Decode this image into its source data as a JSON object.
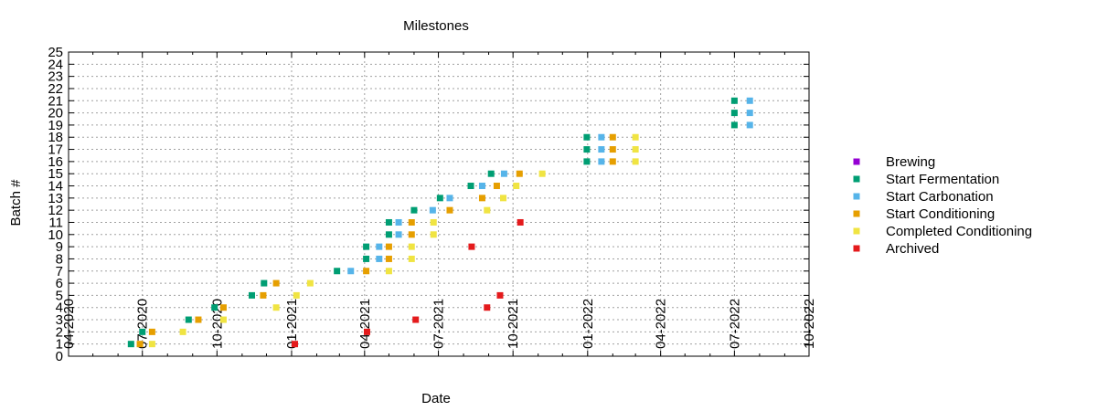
{
  "chart_data": {
    "type": "scatter",
    "title": "Milestones",
    "xlabel": "Date",
    "ylabel": "Batch #",
    "x_type": "date",
    "xlim": [
      "2020-04-01",
      "2022-10-01"
    ],
    "ylim": [
      0,
      25
    ],
    "x_ticks": [
      "04-2020",
      "07-2020",
      "10-2020",
      "01-2021",
      "04-2021",
      "07-2021",
      "10-2021",
      "01-2022",
      "04-2022",
      "07-2022",
      "10-2022"
    ],
    "y_ticks": [
      "0",
      "1",
      "2",
      "3",
      "4",
      "5",
      "6",
      "7",
      "8",
      "9",
      "10",
      "11",
      "12",
      "13",
      "14",
      "15",
      "16",
      "17",
      "18",
      "19",
      "20",
      "21",
      "22",
      "23",
      "24",
      "25"
    ],
    "grid": true,
    "legend_position": "right",
    "series": [
      {
        "name": "Brewing",
        "color": "#9400d3",
        "points": []
      },
      {
        "name": "Start Fermentation",
        "color": "#009e73",
        "points": [
          {
            "x": "2020-06-17",
            "y": 1
          },
          {
            "x": "2020-07-01",
            "y": 2
          },
          {
            "x": "2020-08-27",
            "y": 3
          },
          {
            "x": "2020-09-28",
            "y": 4
          },
          {
            "x": "2020-11-13",
            "y": 5
          },
          {
            "x": "2020-11-28",
            "y": 6
          },
          {
            "x": "2021-02-26",
            "y": 7
          },
          {
            "x": "2021-04-03",
            "y": 8
          },
          {
            "x": "2021-04-03",
            "y": 9
          },
          {
            "x": "2021-05-01",
            "y": 10
          },
          {
            "x": "2021-05-01",
            "y": 11
          },
          {
            "x": "2021-06-01",
            "y": 12
          },
          {
            "x": "2021-07-03",
            "y": 13
          },
          {
            "x": "2021-08-10",
            "y": 14
          },
          {
            "x": "2021-09-04",
            "y": 15
          },
          {
            "x": "2021-12-31",
            "y": 16
          },
          {
            "x": "2021-12-31",
            "y": 17
          },
          {
            "x": "2021-12-31",
            "y": 18
          },
          {
            "x": "2022-07-01",
            "y": 19
          },
          {
            "x": "2022-07-01",
            "y": 20
          },
          {
            "x": "2022-07-01",
            "y": 21
          }
        ]
      },
      {
        "name": "Start Carbonation",
        "color": "#56b4e9",
        "points": [
          {
            "x": "2021-03-15",
            "y": 7
          },
          {
            "x": "2021-04-19",
            "y": 8
          },
          {
            "x": "2021-04-19",
            "y": 9
          },
          {
            "x": "2021-05-13",
            "y": 10
          },
          {
            "x": "2021-05-13",
            "y": 11
          },
          {
            "x": "2021-06-24",
            "y": 12
          },
          {
            "x": "2021-07-15",
            "y": 13
          },
          {
            "x": "2021-08-24",
            "y": 14
          },
          {
            "x": "2021-09-20",
            "y": 15
          },
          {
            "x": "2022-01-18",
            "y": 16
          },
          {
            "x": "2022-01-18",
            "y": 17
          },
          {
            "x": "2022-01-18",
            "y": 18
          },
          {
            "x": "2022-07-20",
            "y": 19
          },
          {
            "x": "2022-07-20",
            "y": 20
          },
          {
            "x": "2022-07-20",
            "y": 21
          }
        ]
      },
      {
        "name": "Start Conditioning",
        "color": "#e69f00",
        "points": [
          {
            "x": "2020-06-28",
            "y": 1
          },
          {
            "x": "2020-07-13",
            "y": 2
          },
          {
            "x": "2020-09-08",
            "y": 3
          },
          {
            "x": "2020-10-09",
            "y": 4
          },
          {
            "x": "2020-11-27",
            "y": 5
          },
          {
            "x": "2020-12-13",
            "y": 6
          },
          {
            "x": "2021-04-03",
            "y": 7
          },
          {
            "x": "2021-05-01",
            "y": 8
          },
          {
            "x": "2021-05-01",
            "y": 9
          },
          {
            "x": "2021-05-29",
            "y": 10
          },
          {
            "x": "2021-05-29",
            "y": 11
          },
          {
            "x": "2021-07-15",
            "y": 12
          },
          {
            "x": "2021-08-24",
            "y": 13
          },
          {
            "x": "2021-09-11",
            "y": 14
          },
          {
            "x": "2021-10-09",
            "y": 15
          },
          {
            "x": "2022-02-01",
            "y": 16
          },
          {
            "x": "2022-02-01",
            "y": 17
          },
          {
            "x": "2022-02-01",
            "y": 18
          }
        ]
      },
      {
        "name": "Completed Conditioning",
        "color": "#f0e442",
        "points": [
          {
            "x": "2020-07-13",
            "y": 1
          },
          {
            "x": "2020-08-20",
            "y": 2
          },
          {
            "x": "2020-10-09",
            "y": 3
          },
          {
            "x": "2020-12-13",
            "y": 4
          },
          {
            "x": "2021-01-07",
            "y": 5
          },
          {
            "x": "2021-01-24",
            "y": 6
          },
          {
            "x": "2021-05-01",
            "y": 7
          },
          {
            "x": "2021-05-29",
            "y": 8
          },
          {
            "x": "2021-05-29",
            "y": 9
          },
          {
            "x": "2021-06-25",
            "y": 10
          },
          {
            "x": "2021-06-25",
            "y": 11
          },
          {
            "x": "2021-08-30",
            "y": 12
          },
          {
            "x": "2021-09-19",
            "y": 13
          },
          {
            "x": "2021-10-05",
            "y": 14
          },
          {
            "x": "2021-11-06",
            "y": 15
          },
          {
            "x": "2022-03-01",
            "y": 16
          },
          {
            "x": "2022-03-01",
            "y": 17
          },
          {
            "x": "2022-03-01",
            "y": 18
          }
        ]
      },
      {
        "name": "Archived",
        "color": "#e41a1c",
        "points": [
          {
            "x": "2021-01-05",
            "y": 1
          },
          {
            "x": "2021-04-04",
            "y": 2
          },
          {
            "x": "2021-06-03",
            "y": 3
          },
          {
            "x": "2021-08-30",
            "y": 4
          },
          {
            "x": "2021-09-15",
            "y": 5
          },
          {
            "x": "2021-08-11",
            "y": 9
          },
          {
            "x": "2021-10-10",
            "y": 11
          }
        ]
      }
    ]
  }
}
